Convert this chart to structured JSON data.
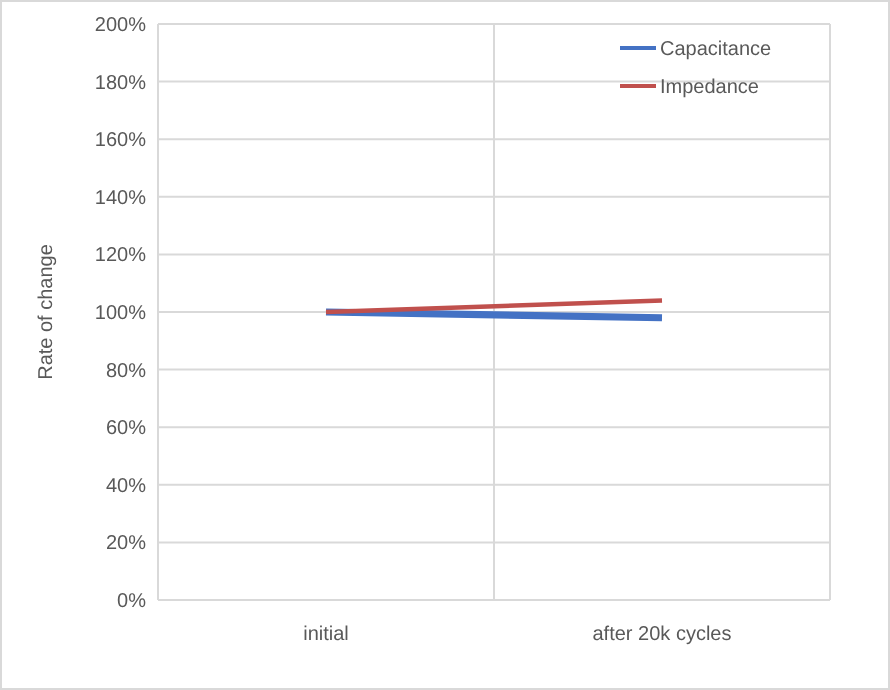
{
  "chart_data": {
    "type": "line",
    "ylabel": "Rate of change",
    "categories": [
      "initial",
      "after 20k cycles"
    ],
    "series": [
      {
        "name": "Capacitance",
        "color": "#4472c4",
        "values": [
          100,
          98
        ]
      },
      {
        "name": "Impedance",
        "color": "#c0504d",
        "values": [
          100,
          104
        ]
      }
    ],
    "ylim": [
      0,
      200
    ],
    "yticks": [
      {
        "value": 0,
        "label": "0%"
      },
      {
        "value": 20,
        "label": "20%"
      },
      {
        "value": 40,
        "label": "40%"
      },
      {
        "value": 60,
        "label": "60%"
      },
      {
        "value": 80,
        "label": "80%"
      },
      {
        "value": 100,
        "label": "100%"
      },
      {
        "value": 120,
        "label": "120%"
      },
      {
        "value": 140,
        "label": "140%"
      },
      {
        "value": 160,
        "label": "160%"
      },
      {
        "value": 180,
        "label": "180%"
      },
      {
        "value": 200,
        "label": "200%"
      }
    ],
    "grid": true,
    "legend": "top right",
    "marker": "none",
    "line_style": "solid"
  }
}
